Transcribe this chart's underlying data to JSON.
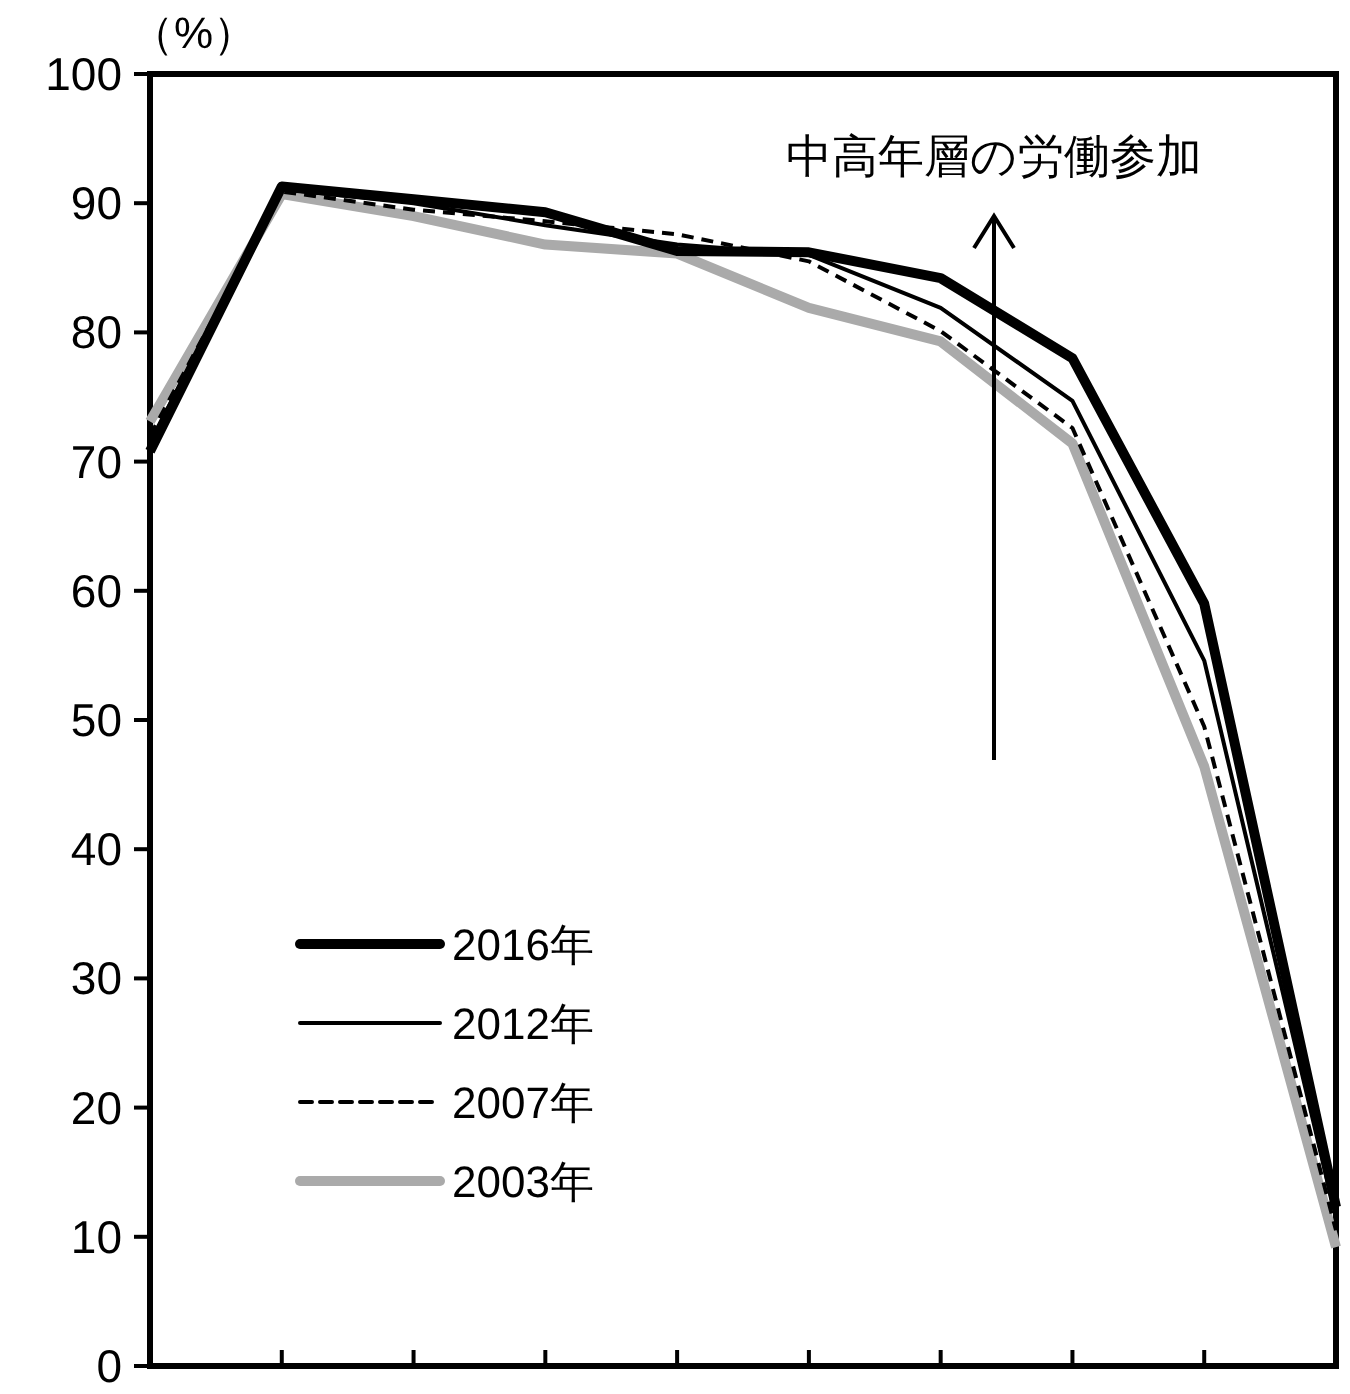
{
  "chart_data": {
    "type": "line",
    "ylabel": "（%）",
    "categories": [
      null,
      null,
      null,
      null,
      null,
      null,
      null,
      null,
      null,
      null
    ],
    "series": [
      {
        "name": "2016年",
        "color": "#000000",
        "line_style": "solid",
        "values": [
          70.8,
          91.3,
          90.3,
          89.3,
          86.3,
          86.2,
          84.2,
          78.0,
          59.0,
          12.3
        ]
      },
      {
        "name": "2012年",
        "color": "#000000",
        "line_style": "solid",
        "values": [
          71.5,
          91.1,
          90.0,
          88.3,
          86.8,
          86.0,
          81.9,
          74.7,
          54.6,
          11.5
        ]
      },
      {
        "name": "2007年",
        "color": "#000000",
        "line_style": "dashed",
        "values": [
          72.0,
          90.9,
          89.5,
          88.6,
          87.6,
          85.5,
          80.1,
          72.6,
          49.5,
          10.5
        ]
      },
      {
        "name": "2003年",
        "color": "#aaaaaa",
        "line_style": "solid",
        "values": [
          73.1,
          90.7,
          89.0,
          86.8,
          86.1,
          81.9,
          79.3,
          71.4,
          46.4,
          9.2
        ]
      }
    ],
    "ylim": [
      0,
      100
    ],
    "yticks": [
      0,
      10,
      20,
      30,
      40,
      50,
      60,
      70,
      80,
      90,
      100
    ],
    "grid": false,
    "legend": "bottom left",
    "marker": "none",
    "tick_labels": "y",
    "annotations": [
      "中高年層の労働参加"
    ]
  }
}
